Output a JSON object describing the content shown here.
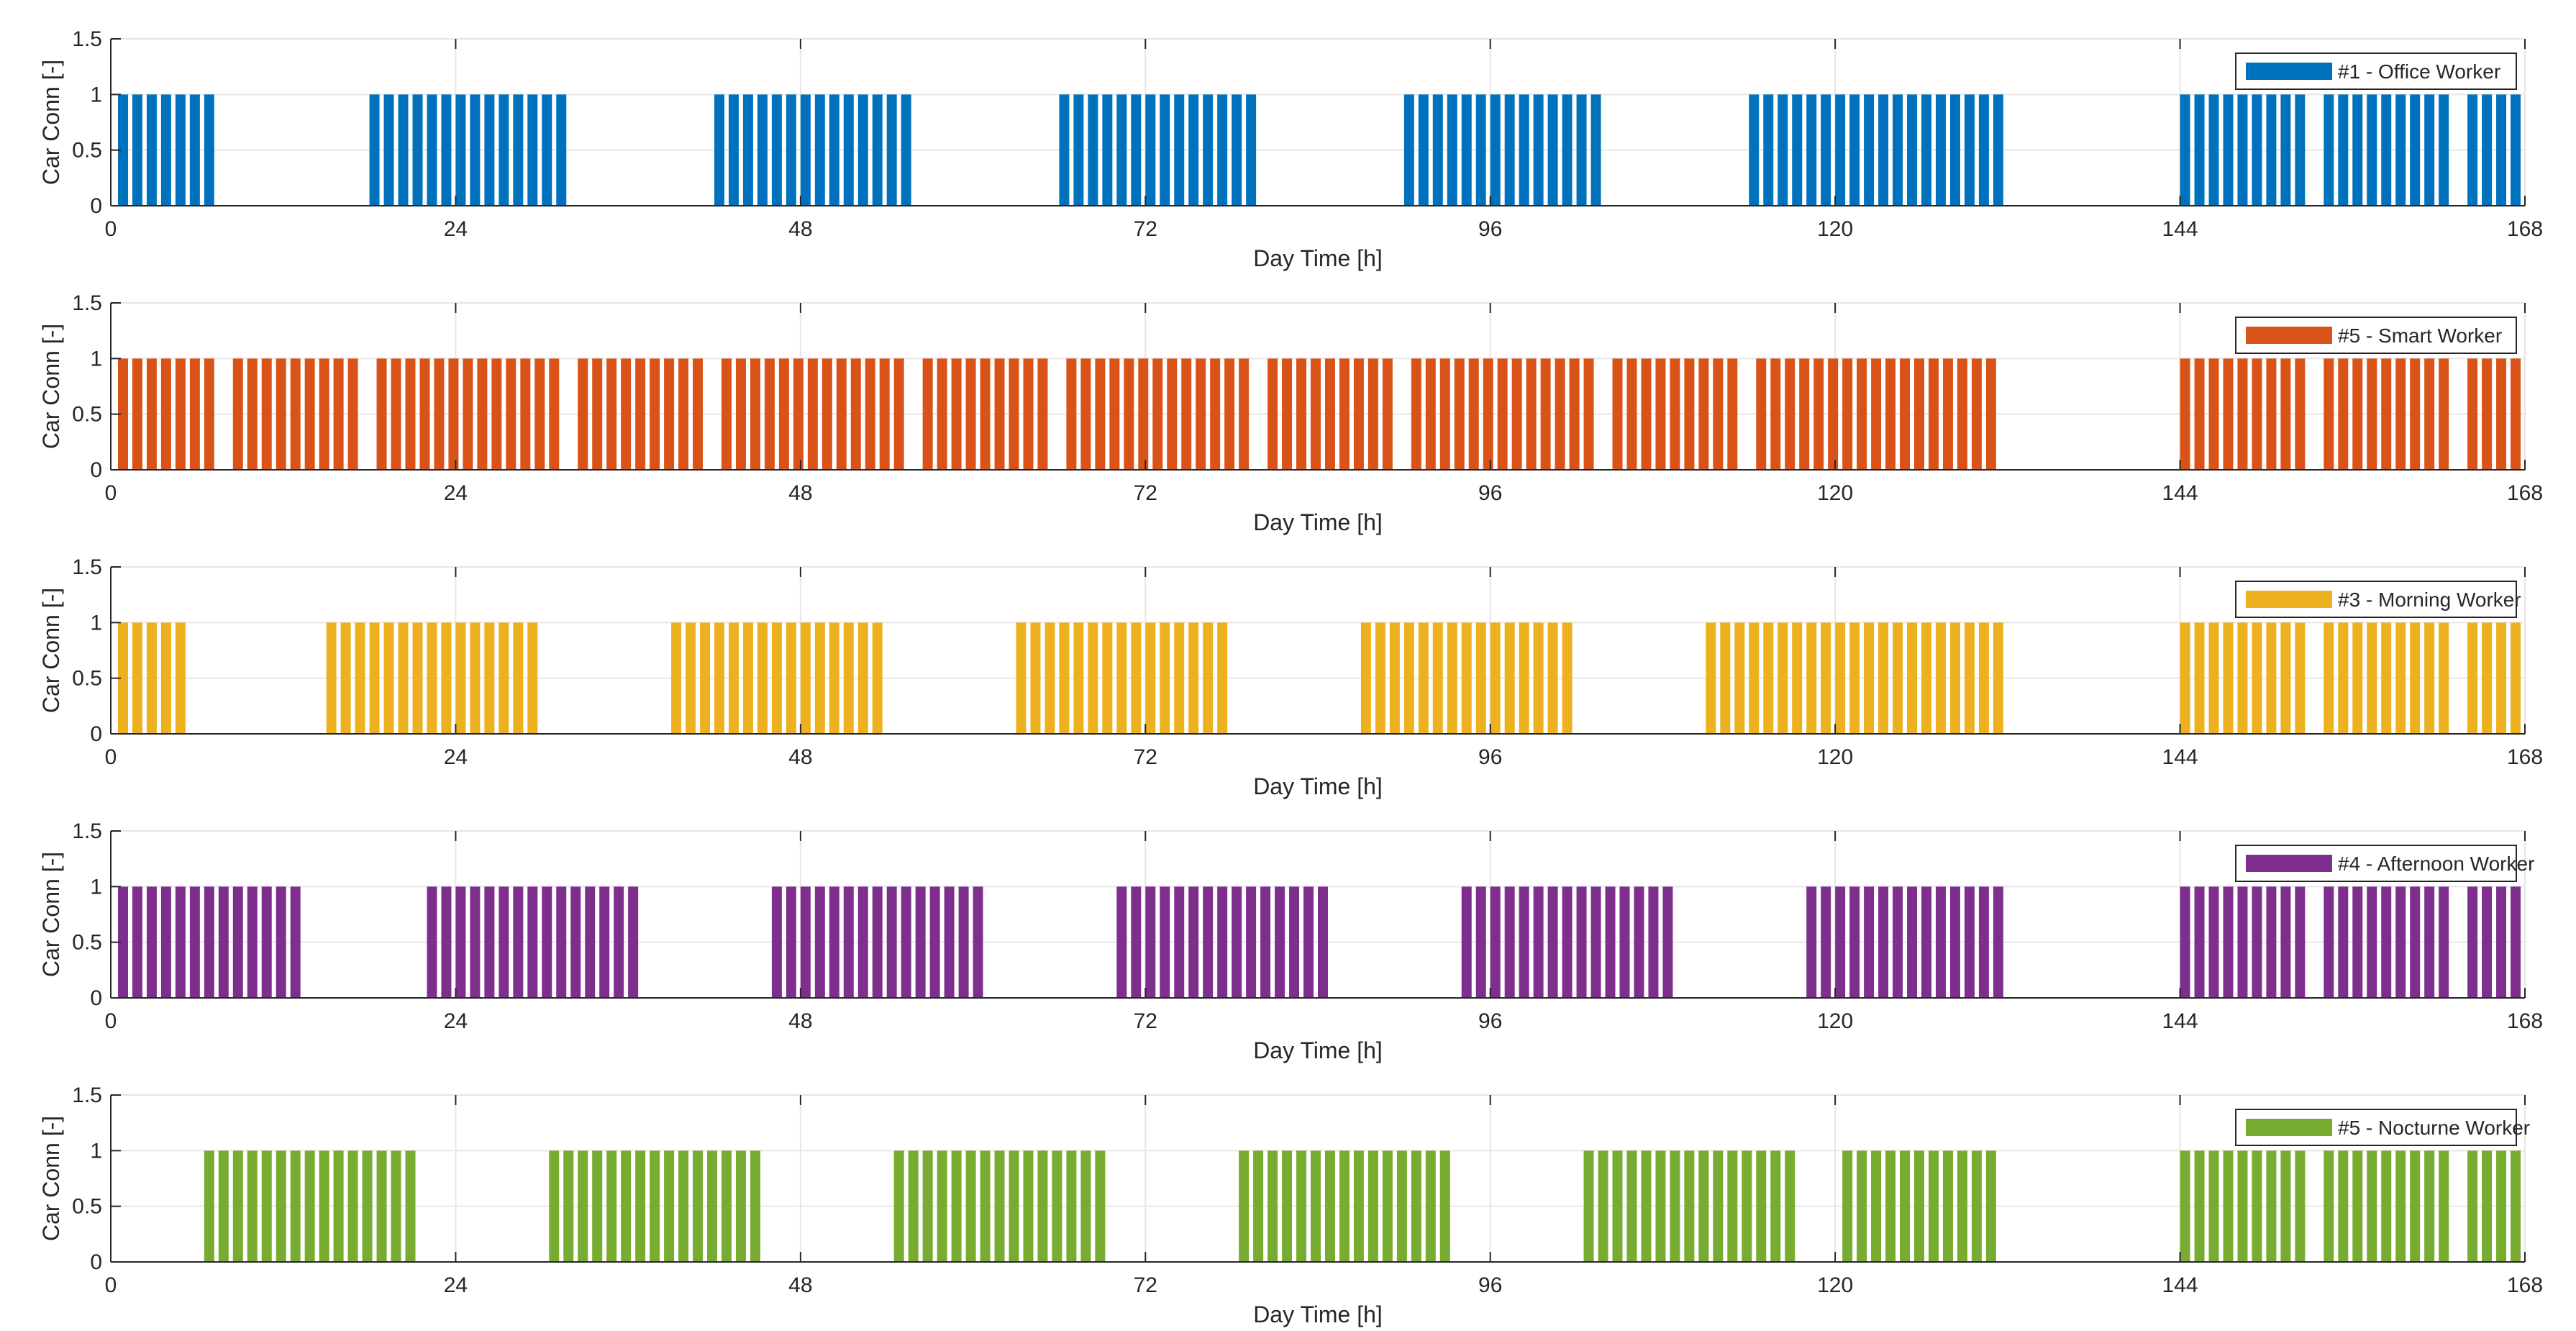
{
  "figure": {
    "shared_xlabel": "Day Time [h]",
    "shared_ylabel": "Car Conn [-]"
  },
  "chart_data": [
    {
      "type": "bar",
      "color": "#0072BD",
      "legend": "#1 - Office Worker",
      "xlabel": "Day Time [h]",
      "ylabel": "Car Conn [-]",
      "xlim": [
        0,
        168
      ],
      "ylim": [
        0,
        1.5
      ],
      "xticks": [
        0,
        24,
        48,
        72,
        96,
        120,
        144,
        168
      ],
      "yticks": [
        0,
        0.5,
        1,
        1.5
      ],
      "ytick_labels": [
        "0",
        "0.5",
        "1",
        "1.5"
      ],
      "grid": true,
      "legend_position": "top-right",
      "bar_value": 1,
      "bar_width_h": 0.7,
      "connected_intervals_h": [
        [
          0.5,
          7.5
        ],
        [
          18,
          32
        ],
        [
          42,
          56
        ],
        [
          66,
          80
        ],
        [
          90,
          104
        ],
        [
          114,
          132
        ],
        [
          144,
          153
        ],
        [
          154,
          163
        ],
        [
          164,
          168
        ]
      ]
    },
    {
      "type": "bar",
      "color": "#D95319",
      "legend": "#5 - Smart Worker",
      "xlabel": "Day Time [h]",
      "ylabel": "Car Conn [-]",
      "xlim": [
        0,
        168
      ],
      "ylim": [
        0,
        1.5
      ],
      "xticks": [
        0,
        24,
        48,
        72,
        96,
        120,
        144,
        168
      ],
      "yticks": [
        0,
        0.5,
        1,
        1.5
      ],
      "ytick_labels": [
        "0",
        "0.5",
        "1",
        "1.5"
      ],
      "grid": true,
      "legend_position": "top-right",
      "bar_value": 1,
      "bar_width_h": 0.7,
      "connected_intervals_h": [
        [
          0.5,
          7.5
        ],
        [
          8.5,
          17.5
        ],
        [
          18.5,
          31.5
        ],
        [
          32.5,
          41.5
        ],
        [
          42.5,
          55.5
        ],
        [
          56.5,
          65.5
        ],
        [
          66.5,
          79.5
        ],
        [
          80.5,
          89.5
        ],
        [
          90.5,
          103.5
        ],
        [
          104.5,
          113.5
        ],
        [
          114.5,
          131.5
        ],
        [
          144,
          153
        ],
        [
          154,
          163
        ],
        [
          164,
          168
        ]
      ]
    },
    {
      "type": "bar",
      "color": "#EDB120",
      "legend": "#3 - Morning Worker",
      "xlabel": "Day Time [h]",
      "ylabel": "Car Conn [-]",
      "xlim": [
        0,
        168
      ],
      "ylim": [
        0,
        1.5
      ],
      "xticks": [
        0,
        24,
        48,
        72,
        96,
        120,
        144,
        168
      ],
      "yticks": [
        0,
        0.5,
        1,
        1.5
      ],
      "ytick_labels": [
        "0",
        "0.5",
        "1",
        "1.5"
      ],
      "grid": true,
      "legend_position": "top-right",
      "bar_value": 1,
      "bar_width_h": 0.7,
      "connected_intervals_h": [
        [
          0.5,
          5.5
        ],
        [
          15,
          30
        ],
        [
          39,
          54
        ],
        [
          63,
          78
        ],
        [
          87,
          102
        ],
        [
          111,
          132
        ],
        [
          144,
          153
        ],
        [
          154,
          163
        ],
        [
          164,
          168
        ]
      ]
    },
    {
      "type": "bar",
      "color": "#7E2F8E",
      "legend": "#4 - Afternoon Worker",
      "xlabel": "Day Time [h]",
      "ylabel": "Car Conn [-]",
      "xlim": [
        0,
        168
      ],
      "ylim": [
        0,
        1.5
      ],
      "xticks": [
        0,
        24,
        48,
        72,
        96,
        120,
        144,
        168
      ],
      "yticks": [
        0,
        0.5,
        1,
        1.5
      ],
      "ytick_labels": [
        "0",
        "0.5",
        "1",
        "1.5"
      ],
      "grid": true,
      "legend_position": "top-right",
      "bar_value": 1,
      "bar_width_h": 0.7,
      "connected_intervals_h": [
        [
          0.5,
          13.5
        ],
        [
          22,
          37
        ],
        [
          46,
          61
        ],
        [
          70,
          85
        ],
        [
          94,
          109
        ],
        [
          118,
          132
        ],
        [
          144,
          153
        ],
        [
          154,
          163
        ],
        [
          164,
          168
        ]
      ]
    },
    {
      "type": "bar",
      "color": "#77AC30",
      "legend": "#5 - Nocturne Worker",
      "xlabel": "Day Time [h]",
      "ylabel": "Car Conn [-]",
      "xlim": [
        0,
        168
      ],
      "ylim": [
        0,
        1.5
      ],
      "xticks": [
        0,
        24,
        48,
        72,
        96,
        120,
        144,
        168
      ],
      "yticks": [
        0,
        0.5,
        1,
        1.5
      ],
      "ytick_labels": [
        "0",
        "0.5",
        "1",
        "1.5"
      ],
      "grid": true,
      "legend_position": "top-right",
      "bar_value": 1,
      "bar_width_h": 0.7,
      "connected_intervals_h": [
        [
          6.5,
          21.5
        ],
        [
          30.5,
          45.5
        ],
        [
          54.5,
          69.5
        ],
        [
          78.5,
          93.5
        ],
        [
          102.5,
          117.5
        ],
        [
          120.5,
          131.5
        ],
        [
          144,
          153
        ],
        [
          154,
          163
        ],
        [
          164,
          168
        ]
      ]
    }
  ]
}
